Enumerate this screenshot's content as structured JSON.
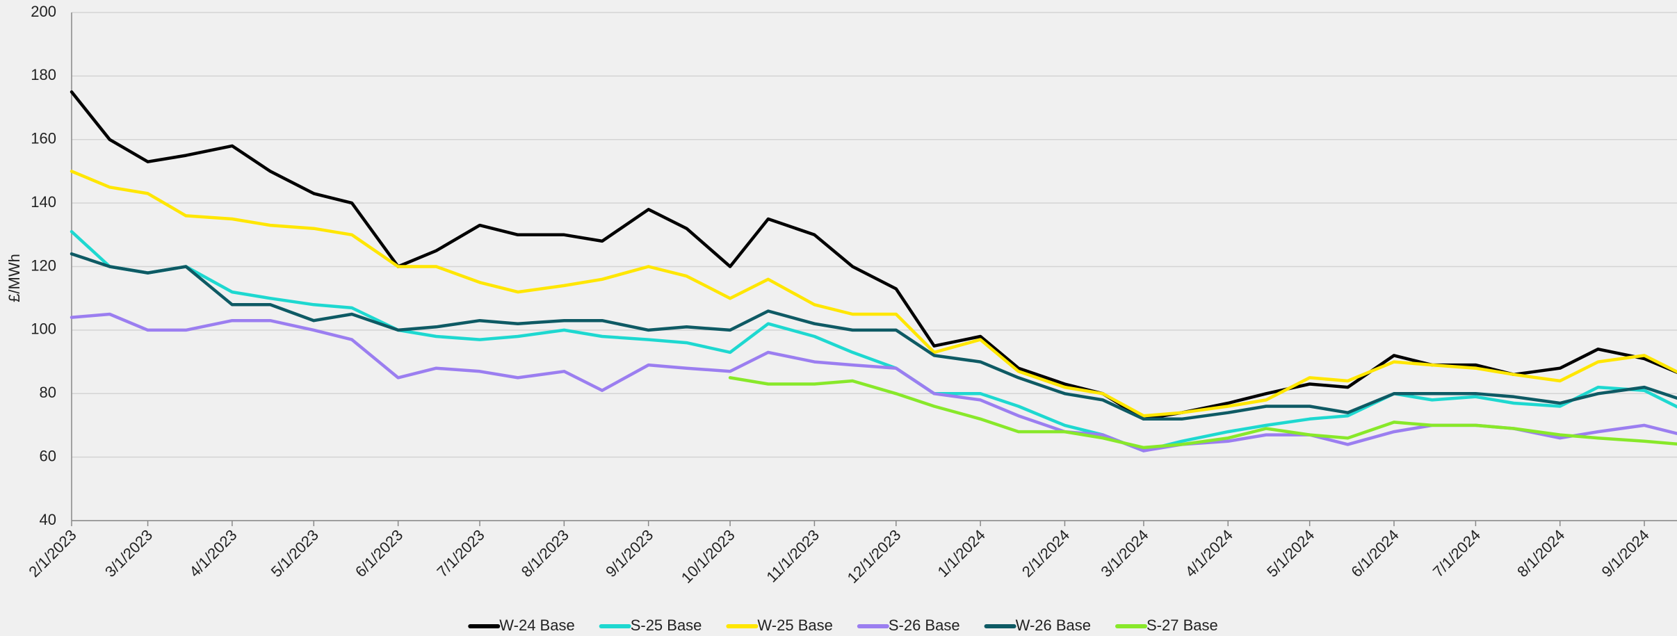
{
  "chart_data": {
    "type": "line",
    "y_label": "£/MWh",
    "x": [
      "2/1/2023",
      "2/15/2023",
      "3/1/2023",
      "3/15/2023",
      "4/1/2023",
      "4/15/2023",
      "5/1/2023",
      "5/15/2023",
      "6/1/2023",
      "6/15/2023",
      "7/1/2023",
      "7/15/2023",
      "8/1/2023",
      "8/15/2023",
      "9/1/2023",
      "9/15/2023",
      "10/1/2023",
      "10/15/2023",
      "11/1/2023",
      "11/15/2023",
      "12/1/2023",
      "12/15/2023",
      "1/1/2024",
      "1/15/2024",
      "2/1/2024",
      "2/15/2024",
      "3/1/2024",
      "3/15/2024",
      "4/1/2024",
      "4/15/2024",
      "5/1/2024",
      "5/15/2024",
      "6/1/2024",
      "6/15/2024",
      "7/1/2024",
      "7/15/2024",
      "8/1/2024",
      "8/15/2024",
      "9/1/2024",
      "9/15/2024"
    ],
    "xlim": [
      "2/1/2023",
      "9/13/2024"
    ],
    "xticks": [
      "2/1/2023",
      "3/1/2023",
      "4/1/2023",
      "5/1/2023",
      "6/1/2023",
      "7/1/2023",
      "8/1/2023",
      "9/1/2023",
      "10/1/2023",
      "11/1/2023",
      "12/1/2023",
      "1/1/2024",
      "2/1/2024",
      "3/1/2024",
      "4/1/2024",
      "5/1/2024",
      "6/1/2024",
      "7/1/2024",
      "8/1/2024",
      "9/1/2024"
    ],
    "ylim": [
      40,
      200
    ],
    "yticks": [
      40,
      60,
      80,
      100,
      120,
      140,
      160,
      180,
      200
    ],
    "grid": true,
    "legend": "bottom",
    "series": [
      {
        "name": "W-24 Base",
        "color": "#000000",
        "values": [
          175,
          160,
          153,
          155,
          158,
          150,
          143,
          140,
          120,
          125,
          133,
          130,
          130,
          128,
          138,
          132,
          120,
          135,
          130,
          120,
          113,
          95,
          98,
          88,
          83,
          80,
          72,
          74,
          77,
          80,
          83,
          82,
          92,
          89,
          89,
          86,
          88,
          94,
          91,
          86
        ]
      },
      {
        "name": "S-25 Base",
        "color": "#1ed8d0",
        "values": [
          131,
          120,
          118,
          120,
          112,
          110,
          108,
          107,
          100,
          98,
          97,
          98,
          100,
          98,
          97,
          96,
          93,
          102,
          98,
          93,
          88,
          80,
          80,
          76,
          70,
          67,
          62,
          65,
          68,
          70,
          72,
          73,
          80,
          78,
          79,
          77,
          76,
          82,
          81,
          75
        ]
      },
      {
        "name": "W-25 Base",
        "color": "#ffe600",
        "values": [
          150,
          145,
          143,
          136,
          135,
          133,
          132,
          130,
          120,
          120,
          115,
          112,
          114,
          116,
          120,
          117,
          110,
          116,
          108,
          105,
          105,
          93,
          97,
          87,
          82,
          80,
          73,
          74,
          76,
          78,
          85,
          84,
          90,
          89,
          88,
          86,
          84,
          90,
          92,
          86
        ]
      },
      {
        "name": "S-26 Base",
        "color": "#9b7ef0",
        "values": [
          104,
          105,
          100,
          100,
          103,
          103,
          100,
          97,
          85,
          88,
          87,
          85,
          87,
          81,
          89,
          88,
          87,
          93,
          90,
          89,
          88,
          80,
          78,
          73,
          68,
          67,
          62,
          64,
          65,
          67,
          67,
          64,
          68,
          70,
          70,
          69,
          66,
          68,
          70,
          67
        ]
      },
      {
        "name": "W-26 Base",
        "color": "#0e5a64",
        "values": [
          124,
          120,
          118,
          120,
          108,
          108,
          103,
          105,
          100,
          101,
          103,
          102,
          103,
          103,
          100,
          101,
          100,
          106,
          102,
          100,
          100,
          92,
          90,
          85,
          80,
          78,
          72,
          72,
          74,
          76,
          76,
          74,
          80,
          80,
          80,
          79,
          77,
          80,
          82,
          78
        ]
      },
      {
        "name": "S-27 Base",
        "color": "#88e82a",
        "values": [
          null,
          null,
          null,
          null,
          null,
          null,
          null,
          null,
          null,
          null,
          null,
          null,
          null,
          null,
          null,
          null,
          85,
          83,
          83,
          84,
          80,
          76,
          72,
          68,
          68,
          66,
          63,
          64,
          66,
          69,
          67,
          66,
          71,
          70,
          70,
          69,
          67,
          66,
          65,
          64
        ]
      }
    ]
  }
}
